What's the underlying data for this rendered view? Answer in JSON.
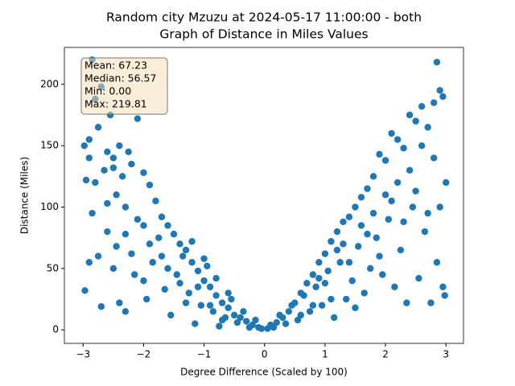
{
  "chart_data": {
    "type": "scatter",
    "title": "Random city Mzuzu at 2024-05-17 11:00:00  - both",
    "subtitle": "Graph of Distance in Miles Values",
    "x_label": "Degree Difference (Scaled by 100)",
    "y_label": "Distance (Miles)",
    "annotations": [
      "Mean: 67.23",
      "Median: 56.57",
      "Min: 0.00",
      "Max: 219.81"
    ],
    "color": "#1f77b4",
    "xlim": [
      -3.31,
      3.29
    ],
    "ylim": [
      -11,
      230
    ],
    "xticks": [
      {
        "value": -3,
        "label": "−3"
      },
      {
        "value": -2,
        "label": "−2"
      },
      {
        "value": -1,
        "label": "−1"
      },
      0,
      1,
      2,
      3
    ],
    "yticks": [
      0,
      50,
      100,
      150,
      200
    ],
    "x": [
      -2.98,
      -2.95,
      -2.9,
      -2.85,
      -2.8,
      -2.75,
      -2.7,
      -2.65,
      -2.6,
      -2.55,
      -2.5,
      -2.45,
      -2.4,
      -2.35,
      -2.3,
      -2.2,
      -2.1,
      -2.0,
      -1.9,
      -1.8,
      -1.7,
      -1.6,
      -1.5,
      -1.4,
      -1.3,
      -1.2,
      -1.1,
      -1.0,
      -0.9,
      -0.8,
      -0.7,
      -0.6,
      -0.5,
      -0.4,
      -0.3,
      -0.2,
      -0.1,
      -2.97,
      -2.9,
      -2.8,
      -2.7,
      -2.6,
      -2.5,
      -2.4,
      -2.3,
      -2.2,
      -2.1,
      -2.0,
      -1.95,
      -1.85,
      -1.75,
      -1.65,
      -1.55,
      -1.45,
      -1.35,
      -1.25,
      -1.15,
      -1.05,
      -0.95,
      -0.85,
      -0.75,
      -0.65,
      -0.55,
      -0.45,
      -0.35,
      -0.25,
      -0.15,
      -0.05,
      -2.85,
      -2.6,
      -2.3,
      -2.0,
      -1.7,
      -1.4,
      -1.2,
      -1.0,
      -0.8,
      -0.6,
      -2.75,
      -2.45,
      -2.15,
      -1.9,
      -1.6,
      -1.3,
      -1.1,
      -0.9,
      -0.7,
      -2.9,
      -2.5,
      -2.25,
      0.05,
      0.1,
      0.2,
      0.3,
      0.4,
      0.5,
      0.6,
      0.7,
      0.8,
      0.9,
      1.0,
      1.1,
      1.2,
      1.3,
      1.4,
      1.5,
      1.6,
      1.7,
      1.8,
      1.9,
      2.0,
      2.1,
      2.2,
      2.3,
      2.4,
      2.5,
      2.6,
      2.7,
      2.8,
      2.85,
      2.9,
      2.95,
      3.0,
      0.15,
      0.25,
      0.35,
      0.45,
      0.55,
      0.65,
      0.75,
      0.85,
      0.95,
      1.05,
      1.15,
      1.25,
      1.35,
      1.45,
      1.55,
      1.65,
      1.75,
      1.85,
      1.95,
      2.05,
      2.15,
      2.25,
      2.35,
      2.45,
      2.55,
      2.65,
      2.75,
      2.85,
      2.95,
      2.98,
      1.0,
      1.2,
      1.4,
      1.6,
      1.8,
      2.0,
      2.2,
      2.4,
      2.6,
      2.8,
      2.9,
      1.1,
      1.3,
      1.5,
      1.7,
      1.9,
      2.1,
      2.3,
      2.5,
      2.7,
      0.8,
      0.6,
      0.9
    ],
    "values": [
      150,
      122,
      155,
      220,
      188,
      165,
      198,
      130,
      145,
      175,
      140,
      110,
      150,
      125,
      100,
      135,
      172,
      128,
      118,
      105,
      92,
      85,
      78,
      70,
      65,
      55,
      48,
      40,
      35,
      28,
      22,
      18,
      12,
      10,
      7,
      4,
      2,
      32,
      55,
      120,
      19,
      80,
      50,
      22,
      15,
      62,
      90,
      40,
      25,
      55,
      75,
      33,
      12,
      45,
      60,
      30,
      5,
      20,
      52,
      15,
      3,
      10,
      25,
      6,
      15,
      2,
      8,
      1,
      95,
      103,
      78,
      85,
      60,
      38,
      72,
      58,
      42,
      30,
      60,
      68,
      45,
      70,
      50,
      22,
      35,
      20,
      8,
      140,
      132,
      145,
      1,
      4,
      6,
      10,
      15,
      22,
      30,
      38,
      45,
      55,
      62,
      72,
      80,
      88,
      92,
      100,
      108,
      115,
      125,
      143,
      138,
      160,
      155,
      148,
      175,
      170,
      182,
      165,
      185,
      218,
      195,
      190,
      120,
      2,
      12,
      5,
      20,
      8,
      28,
      15,
      35,
      20,
      48,
      10,
      55,
      25,
      40,
      68,
      30,
      50,
      75,
      45,
      90,
      35,
      65,
      22,
      100,
      42,
      80,
      22,
      55,
      35,
      28,
      38,
      65,
      55,
      85,
      95,
      110,
      120,
      130,
      150,
      140,
      100,
      25,
      70,
      18,
      78,
      60,
      105,
      88,
      113,
      95,
      20,
      12,
      42
    ]
  }
}
